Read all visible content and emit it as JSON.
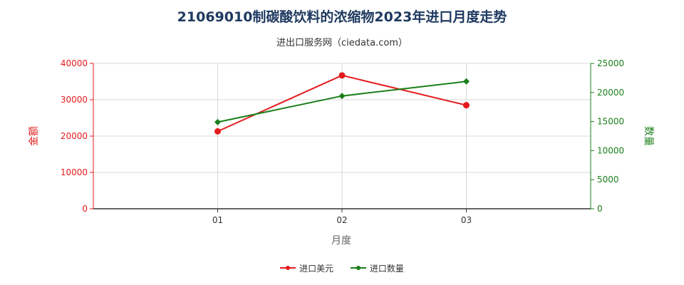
{
  "chart_data": {
    "type": "line",
    "title": "21069010制碳酸饮料的浓缩物2023年进口月度走势",
    "subtitle": "进出口服务网（ciedata.com）",
    "xlabel": "月度",
    "ylabel_left": "金额",
    "ylabel_right": "数量",
    "categories": [
      "01",
      "02",
      "03"
    ],
    "ylim_left": [
      0,
      40000
    ],
    "yticks_left": [
      "0",
      "10000",
      "20000",
      "30000",
      "40000"
    ],
    "ylim_right": [
      0,
      25000
    ],
    "yticks_right": [
      "0",
      "5000",
      "10000",
      "15000",
      "20000",
      "25000"
    ],
    "grid": true,
    "legend_position": "bottom",
    "series": [
      {
        "name": "进口美元",
        "axis": "left",
        "color": "#e31a1c",
        "marker": "circle",
        "values": [
          21300,
          36700,
          28500
        ]
      },
      {
        "name": "进口数量",
        "axis": "right",
        "color": "#1a7f1a",
        "marker": "diamond",
        "values": [
          14900,
          19400,
          21900
        ]
      }
    ]
  }
}
